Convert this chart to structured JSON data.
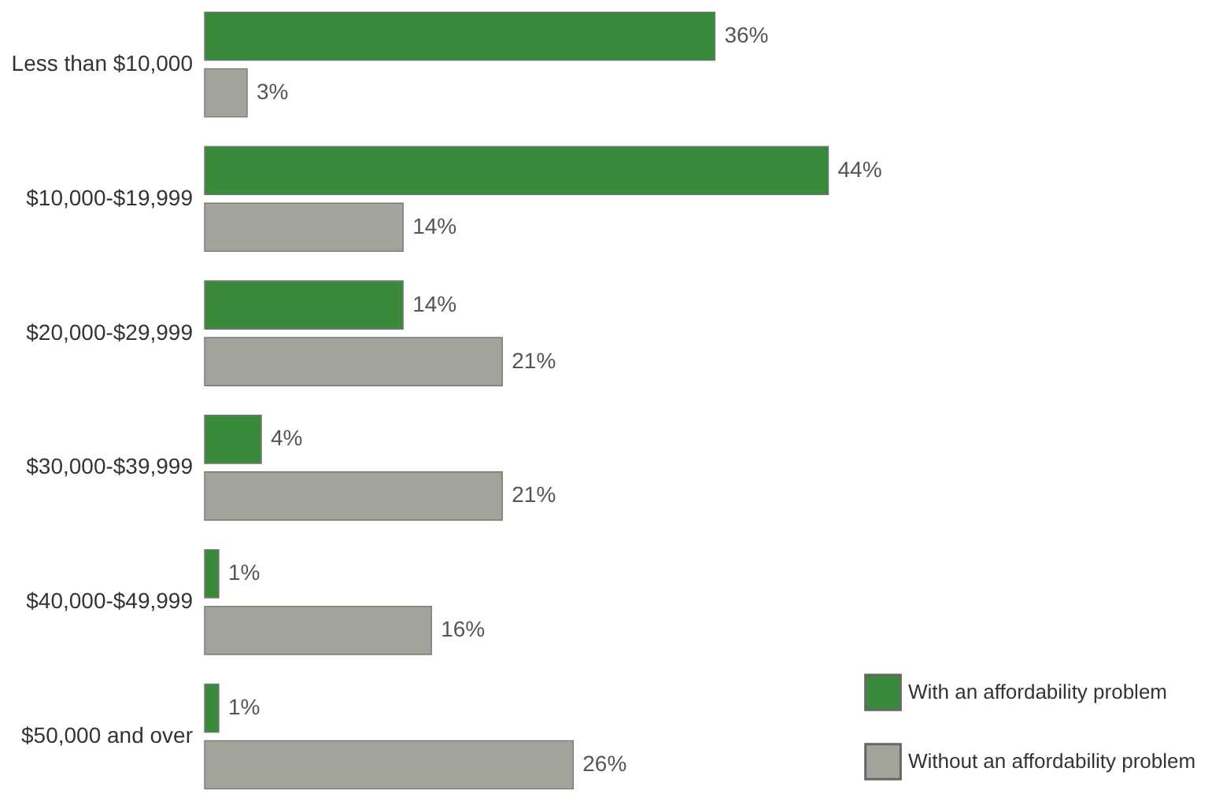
{
  "chart_data": {
    "type": "bar",
    "orientation": "horizontal",
    "categories": [
      "Less than $10,000",
      "$10,000-$19,999",
      "$20,000-$29,999",
      "$30,000-$39,999",
      "$40,000-$49,999",
      "$50,000 and over"
    ],
    "series": [
      {
        "name": "With an affordability problem",
        "color": "#3a8a3c",
        "values": [
          36,
          44,
          14,
          4,
          1,
          1
        ],
        "value_labels": [
          "36%",
          "44%",
          "14%",
          "4%",
          "1%",
          "1%"
        ]
      },
      {
        "name": "Without an affordability problem",
        "color": "#a3a39b",
        "values": [
          3,
          14,
          21,
          21,
          16,
          26
        ],
        "value_labels": [
          "3%",
          "14%",
          "21%",
          "21%",
          "16%",
          "26%"
        ]
      }
    ],
    "legend": "bottom right",
    "grid": false
  }
}
